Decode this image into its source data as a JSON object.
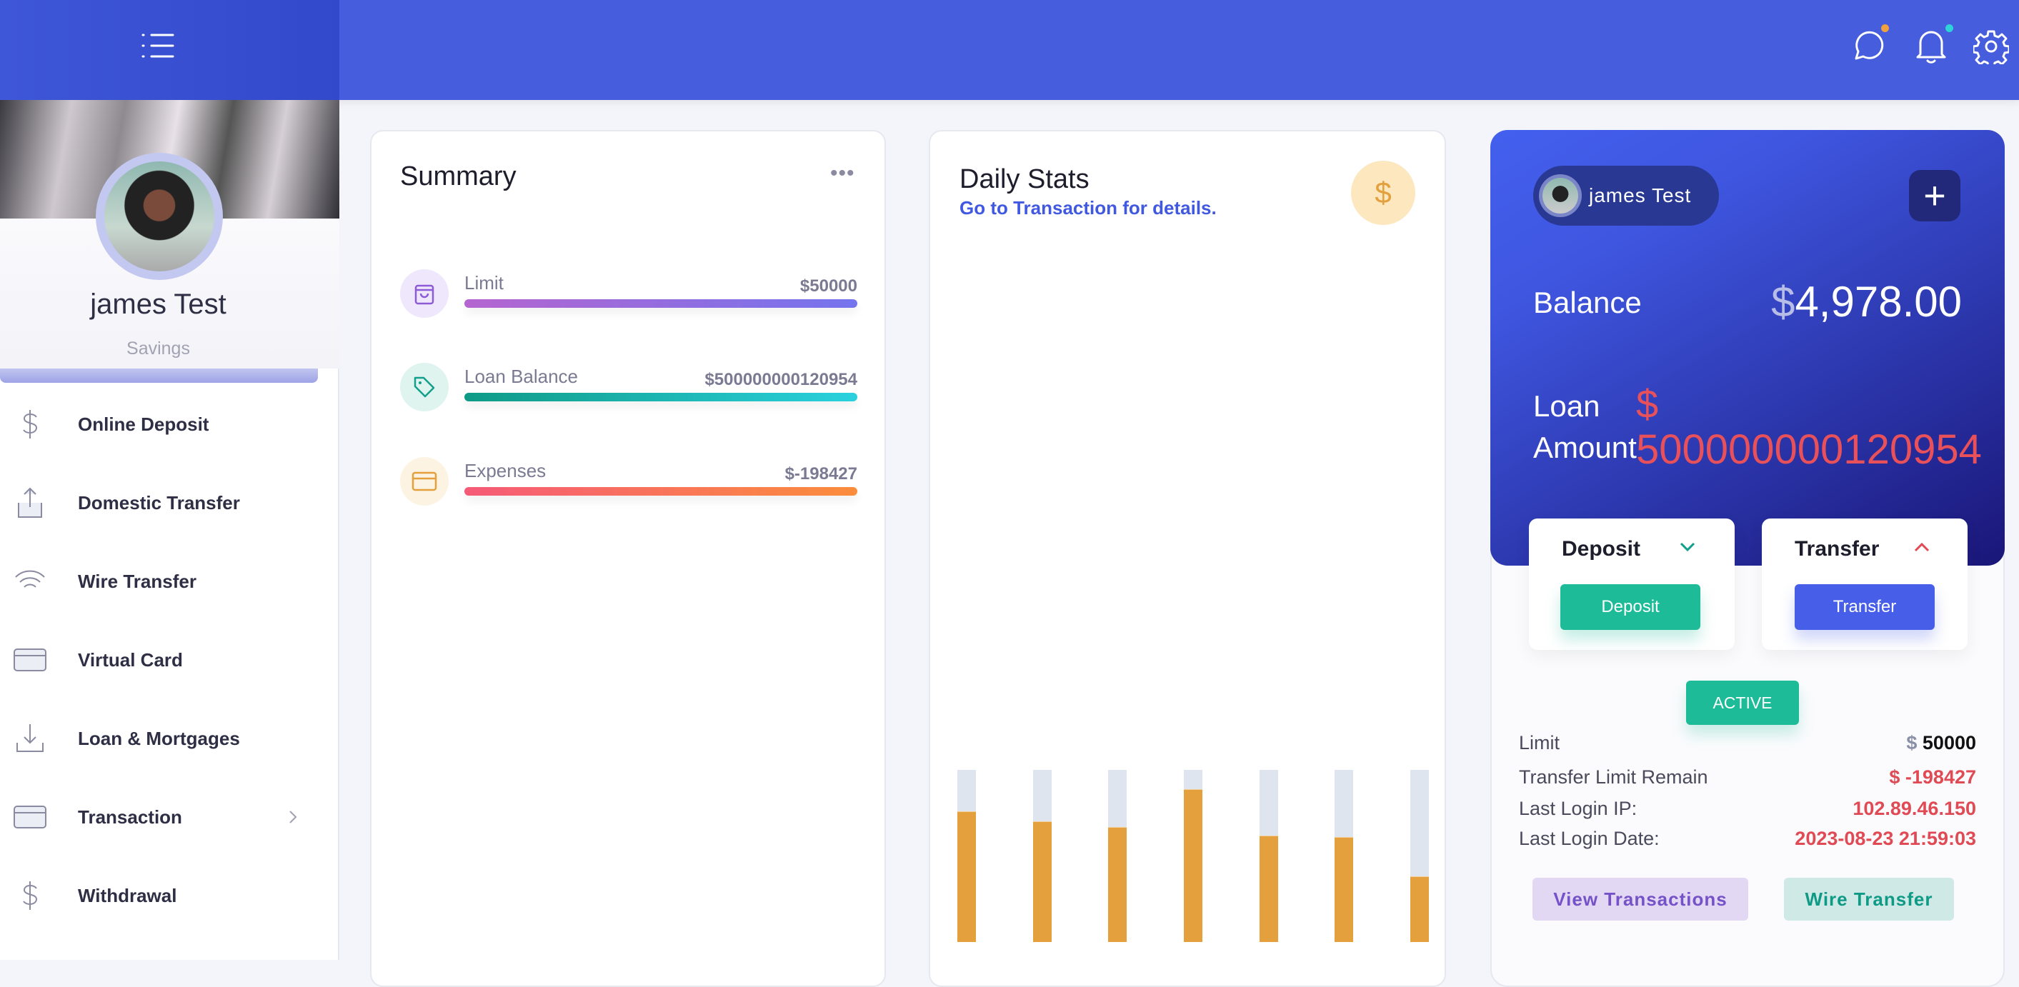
{
  "header": {
    "icons": [
      "menu-icon",
      "chat-icon",
      "bell-icon",
      "gear-icon"
    ],
    "dot_colors": {
      "chat": "#f0a03c",
      "bell": "#2ed3d8"
    }
  },
  "sidebar": {
    "profile": {
      "name": "james Test",
      "account_type": "Savings"
    },
    "items": [
      {
        "label": "Online Deposit",
        "icon": "dollar-icon"
      },
      {
        "label": "Domestic Transfer",
        "icon": "upload-icon"
      },
      {
        "label": "Wire Transfer",
        "icon": "wifi-icon"
      },
      {
        "label": "Virtual Card",
        "icon": "card-icon"
      },
      {
        "label": "Loan & Mortgages",
        "icon": "download-icon"
      },
      {
        "label": "Transaction",
        "icon": "card-icon",
        "has_submenu": true
      },
      {
        "label": "Withdrawal",
        "icon": "dollar-icon"
      }
    ]
  },
  "summary": {
    "title": "Summary",
    "items": [
      {
        "label": "Limit",
        "value": "$50000",
        "icon": "bag-icon",
        "colors": [
          "#b565d0",
          "#7474ee"
        ]
      },
      {
        "label": "Loan Balance",
        "value": "$500000000120954",
        "icon": "tag-icon",
        "colors": [
          "#0f9a86",
          "#2ad1dd"
        ]
      },
      {
        "label": "Expenses",
        "value": "$-198427",
        "icon": "card-icon",
        "colors": [
          "#f65a78",
          "#fb8d3c"
        ]
      }
    ]
  },
  "daily_stats": {
    "title": "Daily Stats",
    "subtitle": "Go to Transaction for details.",
    "currency_symbol": "$"
  },
  "chart_data": {
    "type": "bar",
    "stacked_progress": true,
    "values_percent": [
      76,
      70,
      67,
      89,
      62,
      61,
      38
    ],
    "colors": {
      "fill": "#e3a03c",
      "track": "#dfe5ee"
    }
  },
  "account_card": {
    "user": "james Test",
    "balance_label": "Balance",
    "balance_currency": "$",
    "balance": "4,978.00",
    "loan_label_1": "Loan",
    "loan_label_2": "Amount",
    "loan_currency": "$",
    "loan_amount": "500000000120954",
    "deposit": {
      "title": "Deposit",
      "button": "Deposit"
    },
    "transfer": {
      "title": "Transfer",
      "button": "Transfer"
    },
    "status": "ACTIVE",
    "rows": [
      {
        "label": "Limit",
        "currency": "$",
        "value": "50000"
      },
      {
        "label": "Transfer Limit Remain",
        "value": "$ -198427"
      },
      {
        "label": "Last Login IP:",
        "value": "102.89.46.150"
      },
      {
        "label": "Last Login Date:",
        "value": "2023-08-23 21:59:03"
      }
    ],
    "view_transactions": "View Transactions",
    "wire_transfer": "Wire Transfer"
  }
}
